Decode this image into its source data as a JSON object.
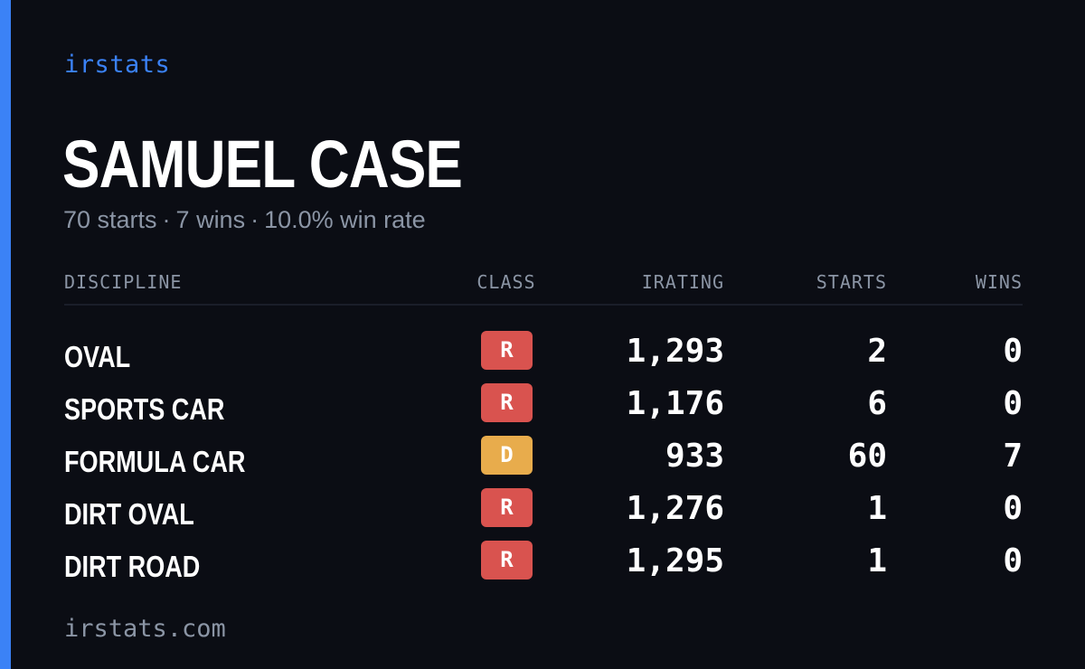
{
  "brand": "irstats",
  "player": {
    "name": "SAMUEL CASE",
    "starts_text": "70 starts",
    "wins_text": "7 wins",
    "winrate_text": "10.0% win rate",
    "separator": "·"
  },
  "table": {
    "headers": {
      "discipline": "DISCIPLINE",
      "class": "CLASS",
      "irating": "IRATING",
      "starts": "STARTS",
      "wins": "WINS"
    },
    "rows": [
      {
        "discipline": "OVAL",
        "class": "R",
        "class_color": "#d9534f",
        "irating": "1,293",
        "starts": "2",
        "wins": "0"
      },
      {
        "discipline": "SPORTS CAR",
        "class": "R",
        "class_color": "#d9534f",
        "irating": "1,176",
        "starts": "6",
        "wins": "0"
      },
      {
        "discipline": "FORMULA CAR",
        "class": "D",
        "class_color": "#e8ac4c",
        "irating": "933",
        "starts": "60",
        "wins": "7"
      },
      {
        "discipline": "DIRT OVAL",
        "class": "R",
        "class_color": "#d9534f",
        "irating": "1,276",
        "starts": "1",
        "wins": "0"
      },
      {
        "discipline": "DIRT ROAD",
        "class": "R",
        "class_color": "#d9534f",
        "irating": "1,295",
        "starts": "1",
        "wins": "0"
      }
    ]
  },
  "footer": "irstats.com",
  "colors": {
    "background": "#0b0d14",
    "accent": "#3b82f6",
    "muted": "#8b95a5",
    "class_r": "#d9534f",
    "class_d": "#e8ac4c"
  }
}
